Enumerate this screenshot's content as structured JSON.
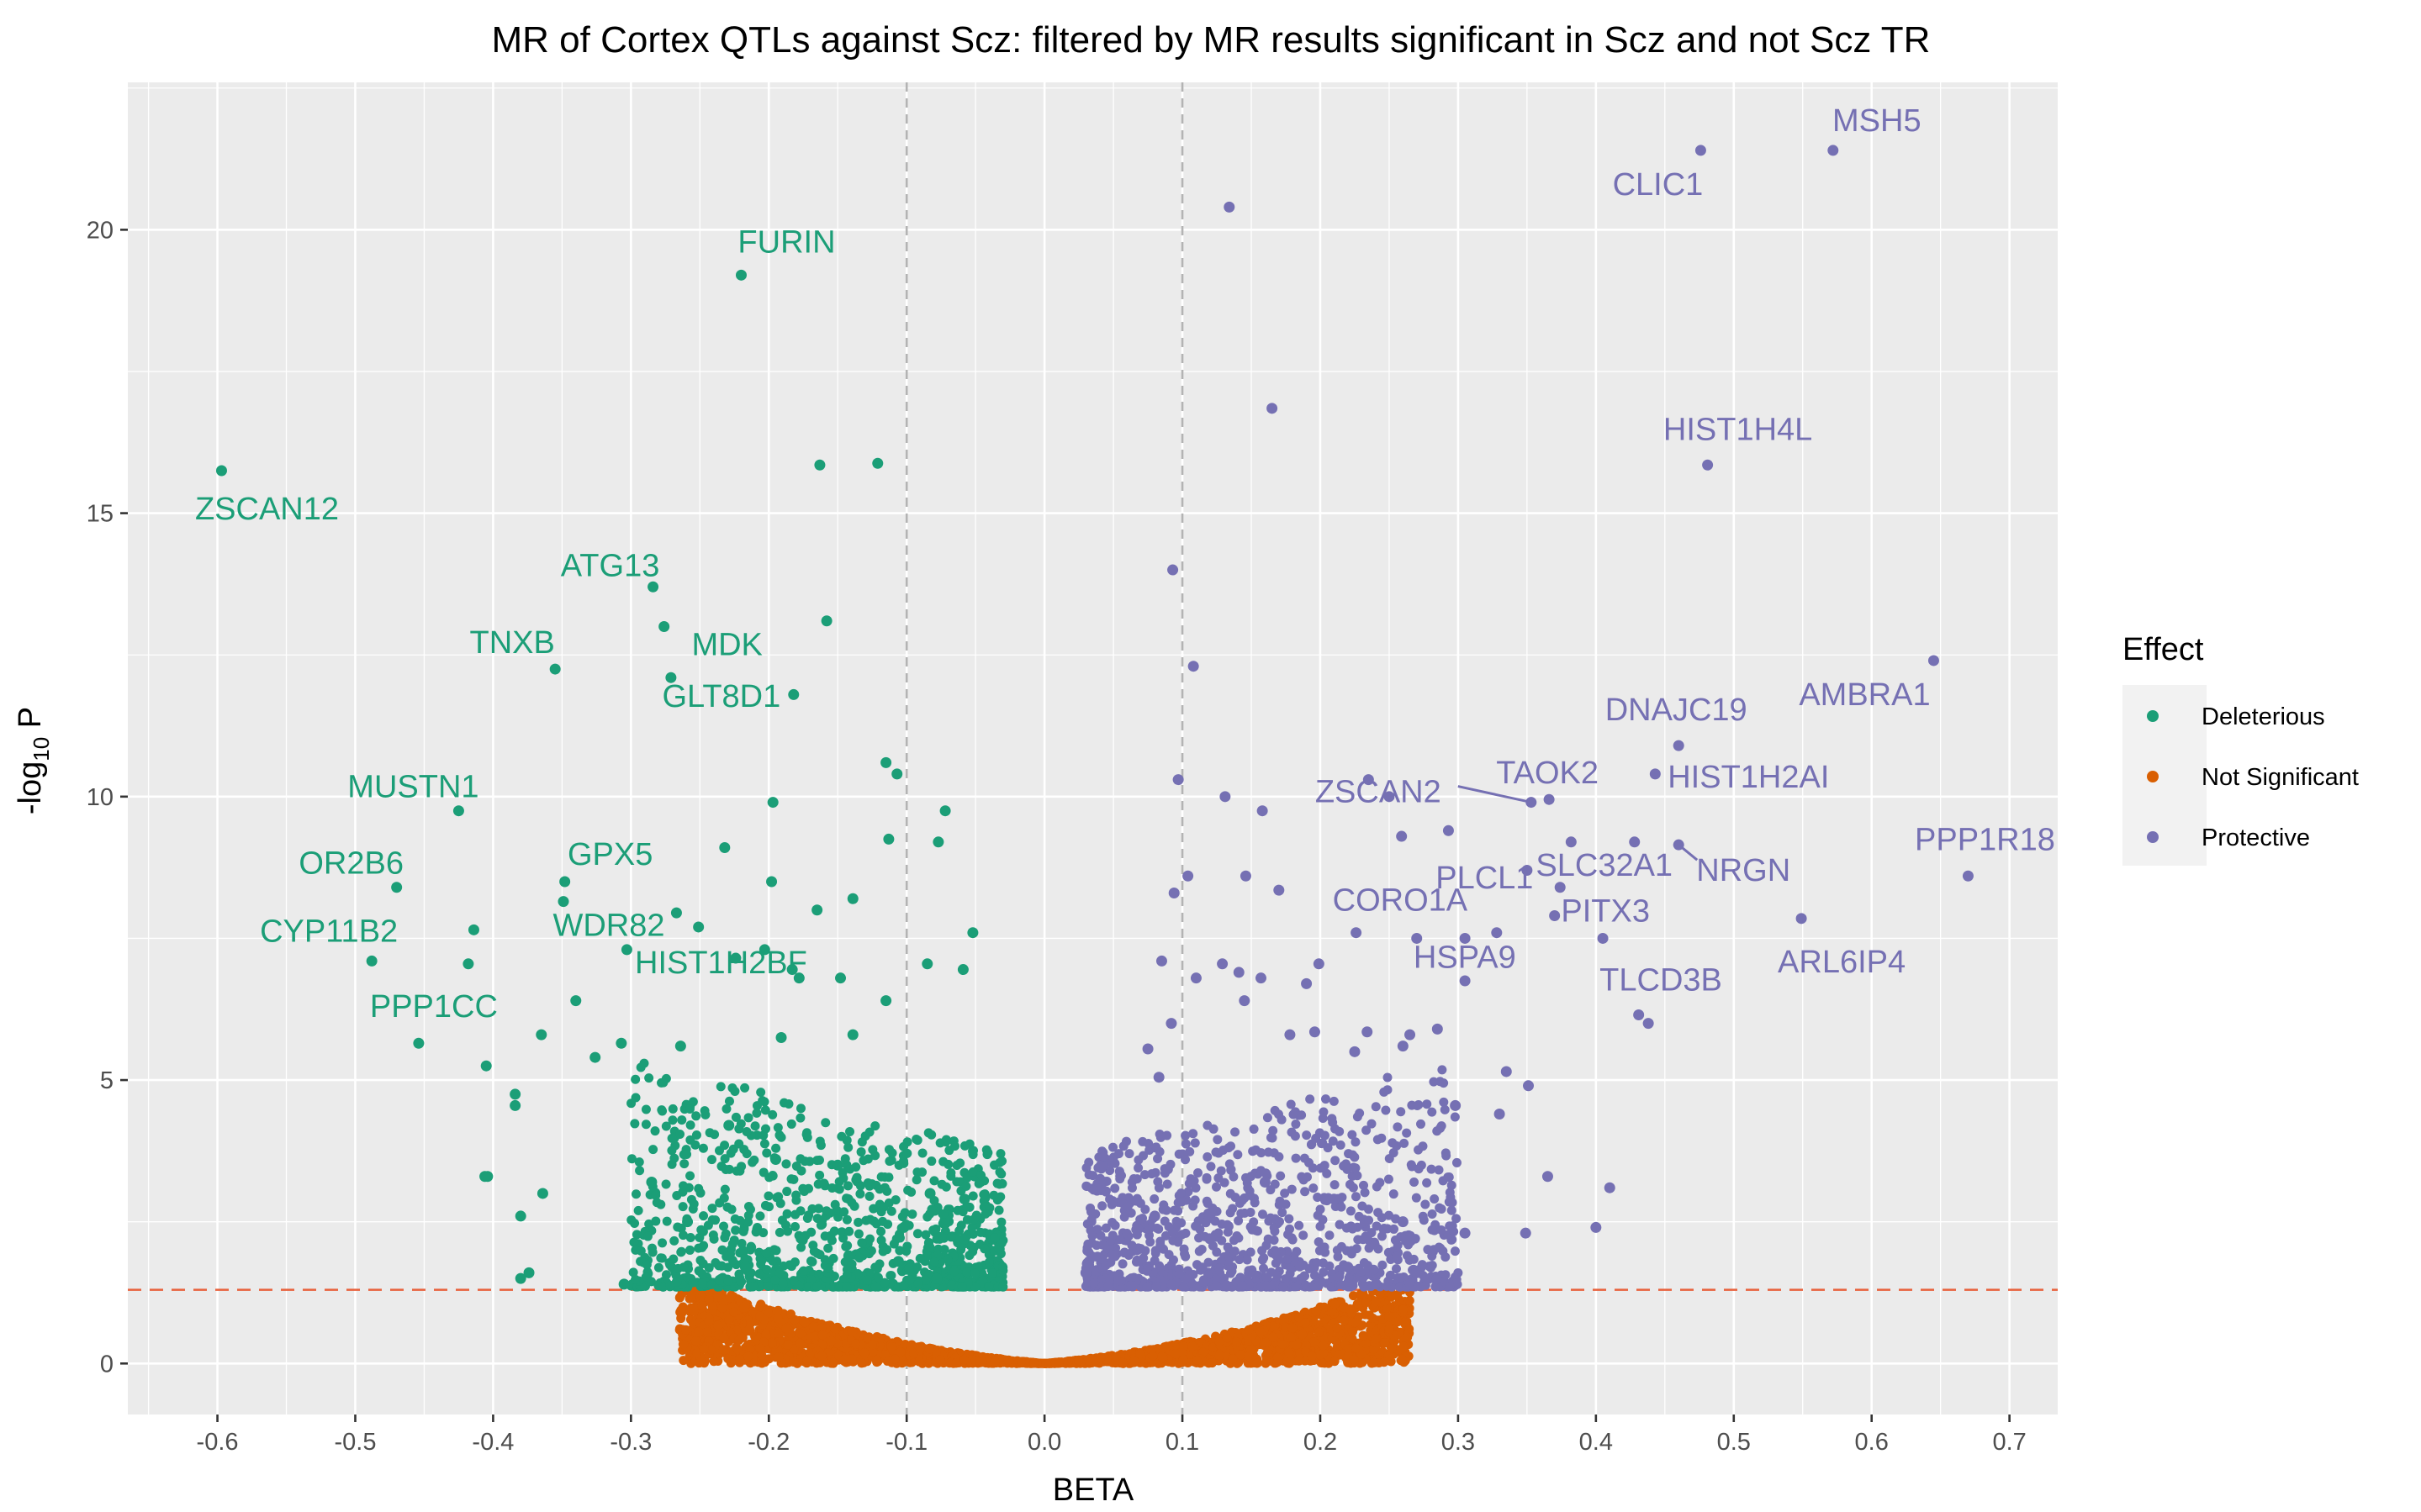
{
  "chart_data": {
    "type": "scatter",
    "title": "MR of Cortex QTLs against Scz: filtered by MR results significant in Scz and not Scz TR",
    "xlabel": "BETA",
    "ylabel": "-log10 P",
    "xlim": [
      -0.665,
      0.735
    ],
    "ylim": [
      -0.9,
      22.6
    ],
    "x_ticks": [
      -0.6,
      -0.5,
      -0.4,
      -0.3,
      -0.2,
      -0.1,
      0.0,
      0.1,
      0.2,
      0.3,
      0.4,
      0.5,
      0.6,
      0.7
    ],
    "x_tick_labels": [
      "-0.6",
      "-0.5",
      "-0.4",
      "-0.3",
      "-0.2",
      "-0.1",
      "0.0",
      "0.1",
      "0.2",
      "0.3",
      "0.4",
      "0.5",
      "0.6",
      "0.7"
    ],
    "y_ticks": [
      0,
      5,
      10,
      15,
      20
    ],
    "y_tick_labels": [
      "0",
      "5",
      "10",
      "15",
      "20"
    ],
    "significance_threshold_y": 1.3,
    "effect_threshold_x": [
      -0.1,
      0.1
    ],
    "legend": {
      "title": "Effect",
      "position": "right",
      "entries": [
        {
          "name": "Deleterious",
          "color": "#1b9e77"
        },
        {
          "name": "Not Significant",
          "color": "#d95f02"
        },
        {
          "name": "Protective",
          "color": "#7570b3"
        }
      ]
    },
    "series": [
      {
        "name": "Deleterious",
        "color": "#1b9e77",
        "points": [
          [
            -0.597,
            15.75
          ],
          [
            -0.22,
            19.2
          ],
          [
            -0.163,
            15.85
          ],
          [
            -0.121,
            15.88
          ],
          [
            -0.158,
            13.1
          ],
          [
            -0.284,
            13.7
          ],
          [
            -0.276,
            13.0
          ],
          [
            -0.355,
            12.25
          ],
          [
            -0.271,
            12.1
          ],
          [
            -0.182,
            11.8
          ],
          [
            -0.425,
            9.75
          ],
          [
            -0.197,
            9.9
          ],
          [
            -0.115,
            10.6
          ],
          [
            -0.107,
            10.4
          ],
          [
            -0.113,
            9.25
          ],
          [
            -0.072,
            9.75
          ],
          [
            -0.077,
            9.2
          ],
          [
            -0.232,
            9.1
          ],
          [
            -0.47,
            8.4
          ],
          [
            -0.348,
            8.5
          ],
          [
            -0.198,
            8.5
          ],
          [
            -0.349,
            8.15
          ],
          [
            -0.139,
            8.2
          ],
          [
            -0.165,
            8.0
          ],
          [
            -0.267,
            7.95
          ],
          [
            -0.251,
            7.7
          ],
          [
            -0.414,
            7.65
          ],
          [
            -0.052,
            7.6
          ],
          [
            -0.488,
            7.1
          ],
          [
            -0.418,
            7.05
          ],
          [
            -0.303,
            7.3
          ],
          [
            -0.203,
            7.3
          ],
          [
            -0.224,
            7.15
          ],
          [
            -0.183,
            6.95
          ],
          [
            -0.178,
            6.8
          ],
          [
            -0.148,
            6.8
          ],
          [
            -0.059,
            6.95
          ],
          [
            -0.085,
            7.05
          ],
          [
            -0.34,
            6.4
          ],
          [
            -0.115,
            6.4
          ],
          [
            -0.454,
            5.65
          ],
          [
            -0.365,
            5.8
          ],
          [
            -0.405,
            5.25
          ],
          [
            -0.307,
            5.65
          ],
          [
            -0.264,
            5.6
          ],
          [
            -0.191,
            5.75
          ],
          [
            -0.139,
            5.8
          ],
          [
            -0.326,
            5.4
          ],
          [
            -0.384,
            4.75
          ],
          [
            -0.384,
            4.55
          ],
          [
            -0.404,
            3.3
          ],
          [
            -0.406,
            3.3
          ],
          [
            -0.38,
            2.6
          ],
          [
            -0.364,
            3.0
          ],
          [
            -0.374,
            1.6
          ],
          [
            -0.38,
            1.5
          ],
          [
            -0.285,
            3.2
          ],
          [
            -0.259,
            2.5
          ],
          [
            -0.229,
            4.2
          ],
          [
            -0.195,
            3.6
          ],
          [
            -0.15,
            3.5
          ],
          [
            -0.083,
            3.0
          ],
          [
            -0.058,
            2.9
          ],
          [
            -0.102,
            2.4
          ],
          [
            -0.058,
            2.2
          ],
          [
            -0.106,
            1.8
          ],
          [
            -0.078,
            1.5
          ],
          [
            -0.142,
            1.9
          ],
          [
            -0.217,
            1.7
          ],
          [
            -0.305,
            1.4
          ]
        ]
      },
      {
        "name": "Protective",
        "color": "#7570b3",
        "points": [
          [
            0.476,
            21.4
          ],
          [
            0.572,
            21.4
          ],
          [
            0.134,
            20.4
          ],
          [
            0.165,
            16.85
          ],
          [
            0.481,
            15.85
          ],
          [
            0.093,
            14.0
          ],
          [
            0.108,
            12.3
          ],
          [
            0.645,
            12.4
          ],
          [
            0.46,
            10.9
          ],
          [
            0.443,
            10.4
          ],
          [
            0.235,
            10.3
          ],
          [
            0.353,
            9.9
          ],
          [
            0.366,
            9.95
          ],
          [
            0.428,
            9.2
          ],
          [
            0.46,
            9.15
          ],
          [
            0.382,
            9.2
          ],
          [
            0.67,
            8.6
          ],
          [
            0.259,
            9.3
          ],
          [
            0.25,
            10.0
          ],
          [
            0.293,
            9.4
          ],
          [
            0.097,
            10.3
          ],
          [
            0.131,
            10.0
          ],
          [
            0.158,
            9.75
          ],
          [
            0.104,
            8.6
          ],
          [
            0.146,
            8.6
          ],
          [
            0.35,
            8.7
          ],
          [
            0.374,
            8.4
          ],
          [
            0.549,
            7.85
          ],
          [
            0.37,
            7.9
          ],
          [
            0.405,
            7.5
          ],
          [
            0.226,
            7.6
          ],
          [
            0.27,
            7.5
          ],
          [
            0.305,
            7.5
          ],
          [
            0.328,
            7.6
          ],
          [
            0.305,
            6.75
          ],
          [
            0.431,
            6.15
          ],
          [
            0.438,
            6.0
          ],
          [
            0.094,
            8.3
          ],
          [
            0.17,
            8.35
          ],
          [
            0.085,
            7.1
          ],
          [
            0.129,
            7.05
          ],
          [
            0.141,
            6.9
          ],
          [
            0.199,
            7.05
          ],
          [
            0.11,
            6.8
          ],
          [
            0.157,
            6.8
          ],
          [
            0.19,
            6.7
          ],
          [
            0.092,
            6.0
          ],
          [
            0.145,
            6.4
          ],
          [
            0.178,
            5.8
          ],
          [
            0.196,
            5.85
          ],
          [
            0.234,
            5.85
          ],
          [
            0.265,
            5.8
          ],
          [
            0.285,
            5.9
          ],
          [
            0.075,
            5.55
          ],
          [
            0.083,
            5.05
          ],
          [
            0.225,
            5.5
          ],
          [
            0.26,
            5.6
          ],
          [
            0.335,
            5.15
          ],
          [
            0.351,
            4.9
          ],
          [
            0.298,
            4.55
          ],
          [
            0.33,
            4.4
          ],
          [
            0.41,
            3.1
          ],
          [
            0.4,
            2.4
          ],
          [
            0.365,
            3.3
          ],
          [
            0.349,
            2.3
          ],
          [
            0.305,
            2.3
          ],
          [
            0.26,
            2.5
          ],
          [
            0.21,
            2.9
          ],
          [
            0.16,
            3.2
          ],
          [
            0.12,
            2.2
          ],
          [
            0.08,
            2.6
          ],
          [
            0.05,
            1.9
          ],
          [
            0.03,
            1.6
          ],
          [
            0.27,
            1.6
          ],
          [
            0.22,
            1.7
          ]
        ]
      }
    ],
    "labels": [
      {
        "text": "MSH5",
        "x": 0.572,
        "y": 21.4,
        "series": "Protective"
      },
      {
        "text": "CLIC1",
        "x": 0.476,
        "y": 21.4,
        "series": "Protective"
      },
      {
        "text": "HIST1H4L",
        "x": 0.481,
        "y": 15.85,
        "series": "Protective"
      },
      {
        "text": "AMBRA1",
        "x": 0.645,
        "y": 12.4,
        "series": "Protective"
      },
      {
        "text": "DNAJC19",
        "x": 0.46,
        "y": 10.9,
        "series": "Protective"
      },
      {
        "text": "HIST1H2AI",
        "x": 0.443,
        "y": 10.4,
        "series": "Protective"
      },
      {
        "text": "TAOK2",
        "x": 0.366,
        "y": 9.95,
        "series": "Protective"
      },
      {
        "text": "ZSCAN2",
        "x": 0.353,
        "y": 9.9,
        "series": "Protective"
      },
      {
        "text": "SLC32A1",
        "x": 0.428,
        "y": 9.2,
        "series": "Protective"
      },
      {
        "text": "PPP1R18",
        "x": 0.67,
        "y": 8.6,
        "series": "Protective"
      },
      {
        "text": "PLCL1",
        "x": 0.382,
        "y": 9.2,
        "series": "Protective"
      },
      {
        "text": "NRGN",
        "x": 0.46,
        "y": 9.15,
        "series": "Protective"
      },
      {
        "text": "CORO1A",
        "x": 0.35,
        "y": 8.7,
        "series": "Protective"
      },
      {
        "text": "PITX3",
        "x": 0.374,
        "y": 8.4,
        "series": "Protective"
      },
      {
        "text": "HSPA9",
        "x": 0.328,
        "y": 7.6,
        "series": "Protective"
      },
      {
        "text": "ARL6IP4",
        "x": 0.549,
        "y": 7.85,
        "series": "Protective"
      },
      {
        "text": "TLCD3B",
        "x": 0.405,
        "y": 7.5,
        "series": "Protective"
      },
      {
        "text": "FURIN",
        "x": -0.22,
        "y": 19.2,
        "series": "Deleterious"
      },
      {
        "text": "ZSCAN12",
        "x": -0.597,
        "y": 15.75,
        "series": "Deleterious"
      },
      {
        "text": "ATG13",
        "x": -0.284,
        "y": 13.7,
        "series": "Deleterious"
      },
      {
        "text": "TNXB",
        "x": -0.355,
        "y": 12.25,
        "series": "Deleterious"
      },
      {
        "text": "MDK",
        "x": -0.276,
        "y": 13.0,
        "series": "Deleterious"
      },
      {
        "text": "GLT8D1",
        "x": -0.271,
        "y": 12.1,
        "series": "Deleterious"
      },
      {
        "text": "MUSTN1",
        "x": -0.425,
        "y": 9.75,
        "series": "Deleterious"
      },
      {
        "text": "OR2B6",
        "x": -0.47,
        "y": 8.4,
        "series": "Deleterious"
      },
      {
        "text": "GPX5",
        "x": -0.348,
        "y": 8.5,
        "series": "Deleterious"
      },
      {
        "text": "WDR82",
        "x": -0.349,
        "y": 8.15,
        "series": "Deleterious"
      },
      {
        "text": "CYP11B2",
        "x": -0.488,
        "y": 7.1,
        "series": "Deleterious"
      },
      {
        "text": "HIST1H2BF",
        "x": -0.303,
        "y": 7.3,
        "series": "Deleterious"
      },
      {
        "text": "PPP1CC",
        "x": -0.418,
        "y": 7.05,
        "series": "Deleterious"
      }
    ]
  }
}
